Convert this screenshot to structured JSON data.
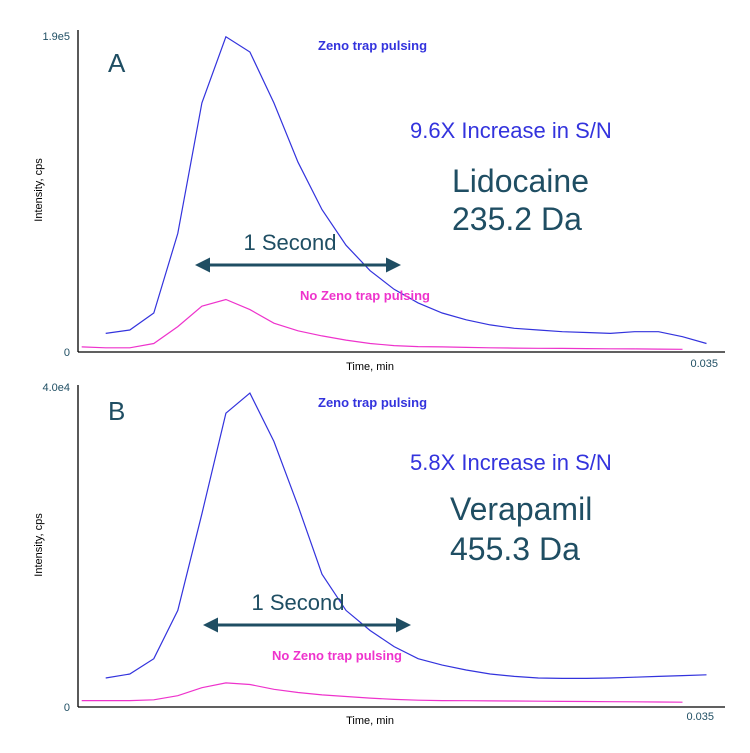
{
  "colors": {
    "zeno": "#3333dd",
    "nozeno": "#ee33cc",
    "arrow": "#1f4e63",
    "text": "#1f4e63",
    "axis": "#000000"
  },
  "chart_data": [
    {
      "type": "line",
      "panel_label": "A",
      "xlabel": "Time, min",
      "ylabel": "Intensity, cps",
      "y_max_label": "1.9e5",
      "y_min_label": "0",
      "x_max_label": "0.035",
      "xlim": [
        0,
        0.035
      ],
      "ylim": [
        0,
        190000
      ],
      "series": [
        {
          "name": "Zeno trap pulsing",
          "x": [
            0.0015,
            0.0028,
            0.0041,
            0.0054,
            0.0067,
            0.008,
            0.0093,
            0.0106,
            0.0119,
            0.0132,
            0.0145,
            0.0158,
            0.0171,
            0.0184,
            0.0197,
            0.021,
            0.0223,
            0.0236,
            0.0249,
            0.0262,
            0.0275,
            0.0288,
            0.0301,
            0.0314,
            0.0327,
            0.034
          ],
          "values": [
            11000,
            13000,
            23000,
            70000,
            147000,
            186000,
            177000,
            147000,
            112000,
            84000,
            63000,
            48000,
            37000,
            29000,
            23000,
            19000,
            16000,
            14000,
            13000,
            12000,
            11500,
            11000,
            12000,
            12000,
            9000,
            5000
          ]
        },
        {
          "name": "No Zeno trap pulsing",
          "x": [
            0.0002,
            0.0015,
            0.0028,
            0.0041,
            0.0054,
            0.0067,
            0.008,
            0.0093,
            0.0106,
            0.0119,
            0.0132,
            0.0145,
            0.0158,
            0.0171,
            0.0184,
            0.0197,
            0.021,
            0.0223,
            0.0236,
            0.0249,
            0.0262,
            0.0275,
            0.0288,
            0.0301,
            0.0314,
            0.0327
          ],
          "values": [
            3000,
            2500,
            2500,
            5000,
            15000,
            27000,
            31000,
            25000,
            17000,
            12500,
            9500,
            7000,
            5000,
            3800,
            3200,
            3000,
            2700,
            2500,
            2300,
            2200,
            2100,
            2000,
            1900,
            1800,
            1700,
            1600
          ]
        }
      ],
      "annotations": {
        "increase": "9.6X Increase in S/N",
        "compound": "Lidocaine",
        "mass": "235.2 Da",
        "fwhm": "1 Second"
      }
    },
    {
      "type": "line",
      "panel_label": "B",
      "xlabel": "Time, min",
      "ylabel": "Intensity, cps",
      "y_max_label": "4.0e4",
      "y_min_label": "0",
      "x_max_label": "0.035",
      "xlim": [
        0,
        0.035
      ],
      "ylim": [
        0,
        40000
      ],
      "series": [
        {
          "name": "Zeno trap pulsing",
          "x": [
            0.0015,
            0.0028,
            0.0041,
            0.0054,
            0.0067,
            0.008,
            0.0093,
            0.0106,
            0.0119,
            0.0132,
            0.0145,
            0.0158,
            0.0171,
            0.0184,
            0.0197,
            0.021,
            0.0223,
            0.0236,
            0.0249,
            0.0262,
            0.0275,
            0.0288,
            0.0301,
            0.0314,
            0.0327,
            0.034
          ],
          "values": [
            3600,
            4100,
            6000,
            12000,
            24000,
            36500,
            39000,
            33000,
            25000,
            16500,
            12000,
            9500,
            7500,
            6000,
            5200,
            4600,
            4100,
            3800,
            3600,
            3550,
            3550,
            3600,
            3700,
            3800,
            3900,
            4000
          ]
        },
        {
          "name": "No Zeno trap pulsing",
          "x": [
            0.0002,
            0.0015,
            0.0028,
            0.0041,
            0.0054,
            0.0067,
            0.008,
            0.0093,
            0.0106,
            0.0119,
            0.0132,
            0.0145,
            0.0158,
            0.0171,
            0.0184,
            0.0197,
            0.021,
            0.0223,
            0.0236,
            0.0249,
            0.0262,
            0.0275,
            0.0288,
            0.0301,
            0.0314,
            0.0327
          ],
          "values": [
            800,
            800,
            800,
            900,
            1400,
            2400,
            3000,
            2800,
            2200,
            1800,
            1500,
            1300,
            1100,
            950,
            850,
            800,
            780,
            760,
            740,
            720,
            700,
            680,
            660,
            640,
            620,
            600
          ]
        }
      ],
      "annotations": {
        "increase": "5.8X Increase in S/N",
        "compound": "Verapamil",
        "mass": "455.3 Da",
        "fwhm": "1 Second"
      }
    }
  ]
}
